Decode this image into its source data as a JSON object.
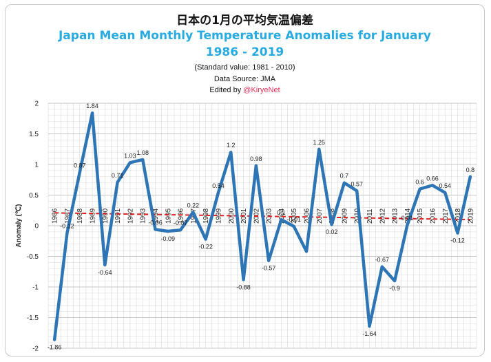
{
  "header": {
    "title_jp": "日本の1月の平均気温偏差",
    "title_en_line1": "Japan Mean Monthly Temperature Anomalies for January",
    "title_en_line2": "1986 - 2019",
    "standard": "(Standard value: 1981 - 2010)",
    "source": "Data Source: JMA",
    "edited_prefix": "Edited by ",
    "edited_handle": "@KiryeNet"
  },
  "colors": {
    "series": "#2e75b6",
    "trend": "#e02020",
    "grid": "#d9d9d9",
    "accent_title": "#29abe2",
    "handle": "#e8315a"
  },
  "chart_data": {
    "type": "line",
    "title": "Japan Mean Monthly Temperature Anomalies for January",
    "xlabel": "",
    "ylabel": "Anomaly (℃)",
    "ylim": [
      -2,
      2
    ],
    "yticks": [
      "2",
      "1.5",
      "1",
      "0.5",
      "0",
      "-0.5",
      "-1",
      "-1.5",
      "-2"
    ],
    "grid": true,
    "x": [
      "1986",
      "1987",
      "1988",
      "1989",
      "1990",
      "1991",
      "1992",
      "1993",
      "1994",
      "1995",
      "1996",
      "1997",
      "1998",
      "1999",
      "2000",
      "2001",
      "2002",
      "2003",
      "2004",
      "2005",
      "2006",
      "2007",
      "2008",
      "2009",
      "2010",
      "2011",
      "2012",
      "2013",
      "2014",
      "2015",
      "2016",
      "2017",
      "2018",
      "2019"
    ],
    "series": [
      {
        "values": [
          -1.86,
          -0.12,
          0.87,
          1.84,
          -0.64,
          0.71,
          1.03,
          1.08,
          -0.06,
          -0.09,
          -0.07,
          0.22,
          -0.22,
          0.54,
          1.2,
          -0.88,
          0.98,
          -0.57,
          0.1,
          -0.01,
          -0.42,
          1.25,
          0.02,
          0.7,
          0.57,
          -1.64,
          -0.67,
          -0.9,
          0.01,
          0.6,
          0.66,
          0.54,
          -0.12,
          0.8
        ],
        "labels": [
          "-1.86",
          "-0.12",
          "0.87",
          "1.84",
          "-0.64",
          "0.71",
          "1.03",
          "1.08",
          "-0.06",
          "-0.09",
          "-0.07",
          "0.22",
          "-0.22",
          "0.54",
          "1.2",
          "-0.88",
          "0.98",
          "-0.57",
          "0.1",
          "-0.01",
          "",
          "1.25",
          "0.02",
          "0.7",
          "0.57",
          "-1.64",
          "-0.67",
          "-0.9",
          "0.01",
          "0.6",
          "0.66",
          "0.54",
          "-0.12",
          "0.8"
        ]
      }
    ],
    "trendline": {
      "style": "dashed",
      "start": 0.21,
      "end": 0.1
    }
  }
}
